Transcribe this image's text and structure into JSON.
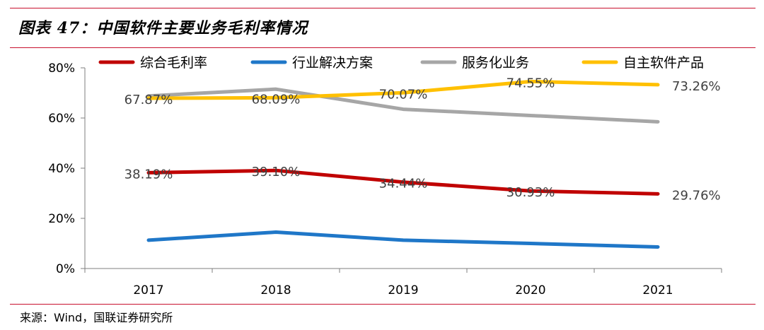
{
  "header": {
    "title": "图表 47：中国软件主要业务毛利率情况"
  },
  "footer": {
    "source": "来源：Wind，国联证券研究所"
  },
  "chart_data": {
    "type": "line",
    "title": "图表 47：中国软件主要业务毛利率情况",
    "xlabel": "",
    "ylabel": "",
    "categories": [
      "2017",
      "2018",
      "2019",
      "2020",
      "2021"
    ],
    "ylim": [
      0,
      80
    ],
    "yticks": [
      "0%",
      "20%",
      "40%",
      "60%",
      "80%"
    ],
    "grid": false,
    "legend": "top",
    "series": [
      {
        "name": "综合毛利率",
        "color": "#c00000",
        "values": [
          38.19,
          39.1,
          34.44,
          30.93,
          29.76
        ],
        "labels": [
          "38.19%",
          "39.10%",
          "34.44%",
          "30.93%",
          "29.76%"
        ]
      },
      {
        "name": "行业解决方案",
        "color": "#1f77c8",
        "values": [
          11.3,
          14.5,
          11.3,
          10.0,
          8.6
        ],
        "labels": []
      },
      {
        "name": "服务化业务",
        "color": "#a6a6a6",
        "values": [
          68.8,
          71.5,
          63.5,
          61.0,
          58.5
        ],
        "labels": []
      },
      {
        "name": "自主软件产品",
        "color": "#ffc000",
        "values": [
          67.87,
          68.09,
          70.07,
          74.55,
          73.26
        ],
        "labels": [
          "67.87%",
          "68.09%",
          "70.07%",
          "74.55%",
          "73.26%"
        ]
      }
    ]
  }
}
